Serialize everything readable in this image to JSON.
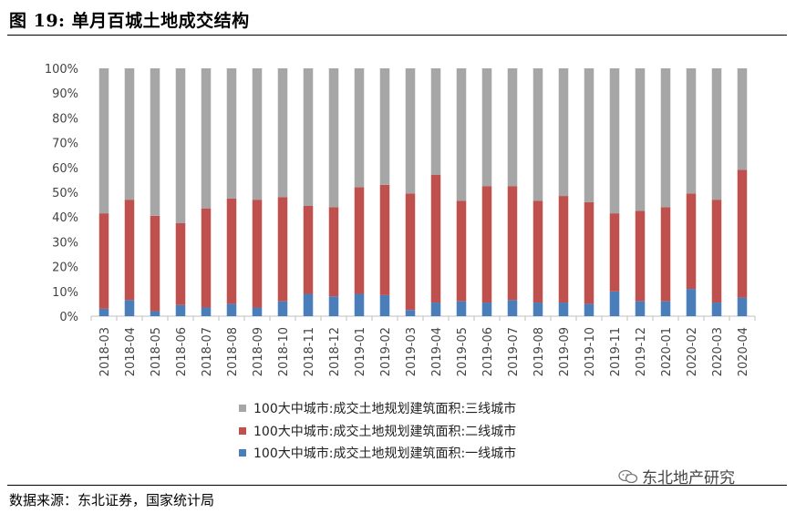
{
  "header": {
    "title": "图 19:  单月百城土地成交结构"
  },
  "footer": {
    "source": "数据来源：东北证券，国家统计局"
  },
  "watermark": {
    "text": "东北地产研究",
    "icon": "wechat-icon"
  },
  "chart_data": {
    "type": "bar",
    "stacked": true,
    "categories": [
      "2018-03",
      "2018-04",
      "2018-05",
      "2018-06",
      "2018-07",
      "2018-08",
      "2018-09",
      "2018-10",
      "2018-11",
      "2018-12",
      "2019-01",
      "2019-02",
      "2019-03",
      "2019-04",
      "2019-05",
      "2019-06",
      "2019-07",
      "2019-08",
      "2019-09",
      "2019-10",
      "2019-11",
      "2019-12",
      "2020-01",
      "2020-02",
      "2020-03",
      "2020-04"
    ],
    "y_ticks": [
      "0%",
      "10%",
      "20%",
      "30%",
      "40%",
      "50%",
      "60%",
      "70%",
      "80%",
      "90%",
      "100%"
    ],
    "ylim": [
      0,
      100
    ],
    "series": [
      {
        "name": "100大中城市:成交土地规划建筑面积:一线城市",
        "color": "#4a7ebb",
        "values": [
          3,
          6.5,
          2,
          4.5,
          3.5,
          5,
          3.5,
          6,
          9,
          8,
          9,
          8.5,
          2.5,
          5.5,
          6,
          5.5,
          6.5,
          5.5,
          5.5,
          5,
          10,
          6,
          6,
          11,
          5.5,
          7.5
        ]
      },
      {
        "name": "100大中城市:成交土地规划建筑面积:二线城市",
        "color": "#c0504d",
        "values": [
          38.5,
          40.5,
          38.5,
          33,
          40,
          42.5,
          43.5,
          42,
          35.5,
          36,
          43,
          44.5,
          47,
          51.5,
          40.5,
          47,
          46,
          41,
          43,
          41,
          31.5,
          36.5,
          38,
          38.5,
          41.5,
          51.5
        ]
      },
      {
        "name": "100大中城市:成交土地规划建筑面积:三线城市",
        "color": "#a6a6a6",
        "values": [
          58.5,
          53,
          59.5,
          62.5,
          56.5,
          52.5,
          53,
          52,
          55.5,
          56,
          48,
          47,
          50.5,
          43,
          53.5,
          47.5,
          47.5,
          53.5,
          51.5,
          54,
          58.5,
          57.5,
          56,
          50.5,
          53,
          41
        ]
      }
    ],
    "legend_order": [
      "三线城市 series",
      "二线城市 series",
      "一线城市 series"
    ],
    "legend_position": "bottom",
    "grid": false
  }
}
